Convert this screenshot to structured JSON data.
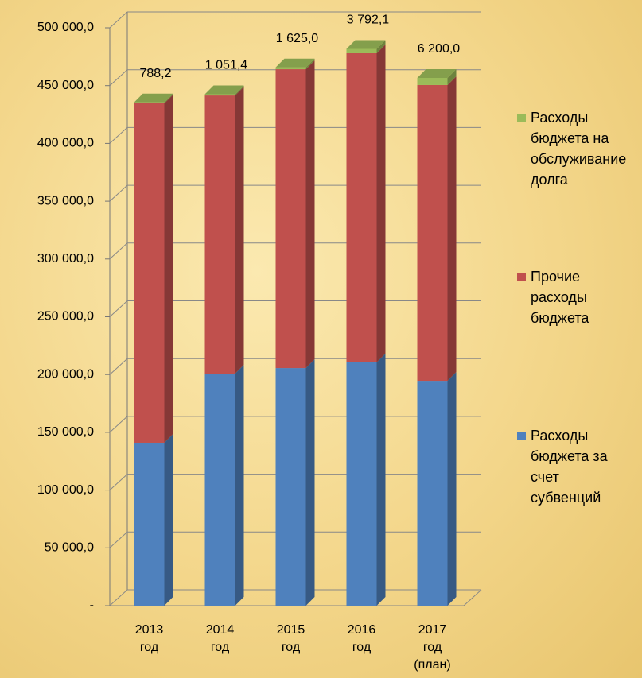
{
  "chart_data": {
    "type": "bar3d_stacked",
    "categories": [
      "2013 год",
      "2014 год",
      "2015 год",
      "2016 год",
      "2017 год (план)"
    ],
    "series": [
      {
        "name": "Расходы бюджета за счет субвенций",
        "color": "#4f81bd",
        "values": [
          141000,
          200800,
          205600,
          210500,
          194600
        ]
      },
      {
        "name": "Прочие расходы бюджета",
        "color": "#c0504d",
        "values": [
          293700,
          240700,
          258600,
          267500,
          255900
        ]
      },
      {
        "name": "Расходы бюджета на обслуживание долга",
        "color": "#9bbb59",
        "values": [
          788.2,
          1051.4,
          1625.0,
          3792.1,
          6200.0
        ],
        "value_labels": [
          "788,2",
          "1 051,4",
          "1 625,0",
          "3 792,1",
          "6 200,0"
        ]
      }
    ],
    "ylim": [
      0,
      500000
    ],
    "yticks": [
      {
        "value": 0,
        "label": "-"
      },
      {
        "value": 50000,
        "label": "50 000,0"
      },
      {
        "value": 100000,
        "label": "100 000,0"
      },
      {
        "value": 150000,
        "label": "150 000,0"
      },
      {
        "value": 200000,
        "label": "200 000,0"
      },
      {
        "value": 250000,
        "label": "250 000,0"
      },
      {
        "value": 300000,
        "label": "300 000,0"
      },
      {
        "value": 350000,
        "label": "350 000,0"
      },
      {
        "value": 400000,
        "label": "400 000,0"
      },
      {
        "value": 450000,
        "label": "450 000,0"
      },
      {
        "value": 500000,
        "label": "500 000,0"
      }
    ],
    "grid": true,
    "legend": "right"
  }
}
